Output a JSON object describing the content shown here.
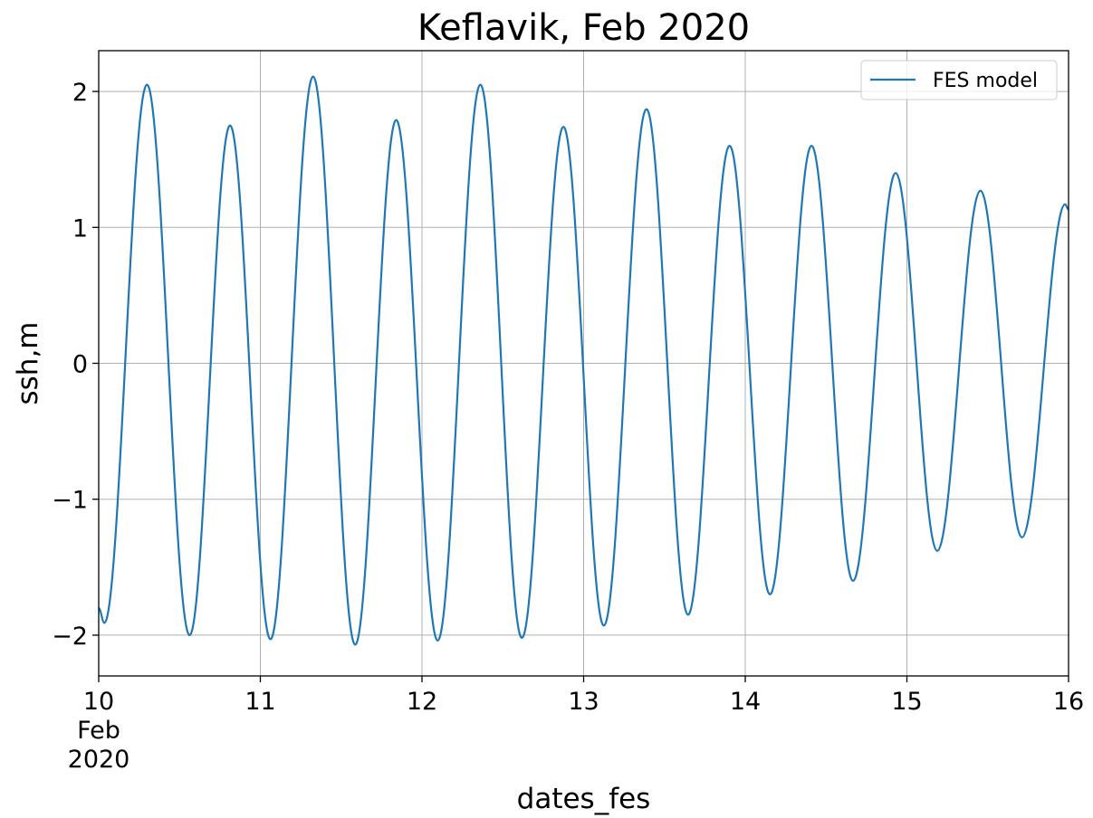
{
  "chart_data": {
    "type": "line",
    "title": "Keflavik, Feb 2020",
    "xlabel": "dates_fes",
    "ylabel": "ssh,m",
    "xlim": [
      "2020-02-10T00:00",
      "2020-02-16T00:00"
    ],
    "ylim": [
      -2.3,
      2.3
    ],
    "grid": true,
    "legend_position": "upper right",
    "x_ticks": [
      {
        "date": "2020-02-10",
        "lines": [
          "10",
          "Feb",
          "2020"
        ]
      },
      {
        "date": "2020-02-11",
        "lines": [
          "11"
        ]
      },
      {
        "date": "2020-02-12",
        "lines": [
          "12"
        ]
      },
      {
        "date": "2020-02-13",
        "lines": [
          "13"
        ]
      },
      {
        "date": "2020-02-14",
        "lines": [
          "14"
        ]
      },
      {
        "date": "2020-02-15",
        "lines": [
          "15"
        ]
      },
      {
        "date": "2020-02-16",
        "lines": [
          "16"
        ]
      }
    ],
    "y_ticks": [
      {
        "value": 2,
        "label": "2"
      },
      {
        "value": 1,
        "label": "1"
      },
      {
        "value": 0,
        "label": "0"
      },
      {
        "value": -1,
        "label": "−1"
      },
      {
        "value": -2,
        "label": "−2"
      }
    ],
    "series": [
      {
        "name": "FES model",
        "color": "#1f77b4",
        "points": [
          [
            "2020-02-10T00:00",
            -1.8
          ],
          [
            "2020-02-10T00:50",
            -1.91
          ],
          [
            "2020-02-10T07:10",
            2.05
          ],
          [
            "2020-02-10T13:30",
            -2.0
          ],
          [
            "2020-02-10T19:30",
            1.75
          ],
          [
            "2020-02-11T01:30",
            -2.03
          ],
          [
            "2020-02-11T07:50",
            2.11
          ],
          [
            "2020-02-11T14:05",
            -2.07
          ],
          [
            "2020-02-11T20:10",
            1.79
          ],
          [
            "2020-02-12T02:20",
            -2.04
          ],
          [
            "2020-02-12T08:40",
            2.05
          ],
          [
            "2020-02-12T14:50",
            -2.02
          ],
          [
            "2020-02-12T21:00",
            1.74
          ],
          [
            "2020-02-13T03:00",
            -1.93
          ],
          [
            "2020-02-13T09:20",
            1.87
          ],
          [
            "2020-02-13T15:30",
            -1.85
          ],
          [
            "2020-02-13T21:40",
            1.6
          ],
          [
            "2020-02-14T03:40",
            -1.7
          ],
          [
            "2020-02-14T09:50",
            1.6
          ],
          [
            "2020-02-14T16:00",
            -1.6
          ],
          [
            "2020-02-14T22:20",
            1.4
          ],
          [
            "2020-02-15T04:30",
            -1.38
          ],
          [
            "2020-02-15T10:55",
            1.27
          ],
          [
            "2020-02-15T17:05",
            -1.28
          ],
          [
            "2020-02-15T23:30",
            1.17
          ],
          [
            "2020-02-16T00:00",
            1.13
          ]
        ]
      }
    ]
  }
}
